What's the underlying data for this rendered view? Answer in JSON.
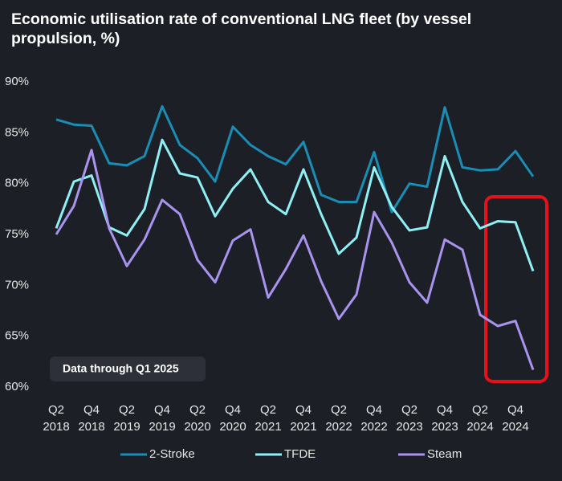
{
  "chart_data": {
    "type": "line",
    "title": "Economic utilisation rate of conventional LNG fleet (by vessel propulsion, %)",
    "annotation": "Data through Q1 2025",
    "categories": [
      "Q2 2018",
      null,
      "Q4 2018",
      null,
      "Q2 2019",
      null,
      "Q4 2019",
      null,
      "Q2 2020",
      null,
      "Q4 2020",
      null,
      "Q2 2021",
      null,
      "Q4 2021",
      null,
      "Q2 2022",
      null,
      "Q4 2022",
      null,
      "Q2 2023",
      null,
      "Q4 2023",
      null,
      "Q2 2024",
      null,
      "Q4 2024",
      null
    ],
    "series": [
      {
        "name": "2-Stroke",
        "color": "#1b8db5",
        "values": [
          86.3,
          85.8,
          85.7,
          82.0,
          81.8,
          82.7,
          87.6,
          83.8,
          82.5,
          80.2,
          85.6,
          83.8,
          82.7,
          81.9,
          84.1,
          78.9,
          78.2,
          78.2,
          83.1,
          77.2,
          80.0,
          79.7,
          87.5,
          81.6,
          81.3,
          81.4,
          83.2,
          80.7
        ]
      },
      {
        "name": "TFDE",
        "color": "#8ef0f5",
        "values": [
          75.6,
          80.2,
          80.8,
          75.7,
          74.9,
          77.5,
          84.3,
          81.0,
          80.6,
          76.8,
          79.5,
          81.4,
          78.2,
          77.0,
          81.4,
          77.0,
          73.1,
          74.7,
          81.6,
          77.7,
          75.4,
          75.7,
          82.7,
          78.2,
          75.6,
          76.3,
          76.2,
          71.4
        ]
      },
      {
        "name": "Steam",
        "color": "#a993ef",
        "values": [
          75.0,
          77.8,
          83.3,
          75.6,
          71.9,
          74.5,
          78.4,
          77.0,
          72.5,
          70.3,
          74.4,
          75.5,
          68.8,
          71.6,
          74.9,
          70.4,
          66.7,
          69.1,
          77.2,
          74.2,
          70.3,
          68.3,
          74.5,
          73.5,
          67.1,
          66.0,
          66.5,
          61.7
        ]
      }
    ],
    "ylim": [
      60,
      90
    ],
    "yticks": [
      {
        "value": 60,
        "label": "60%"
      },
      {
        "value": 65,
        "label": "65%"
      },
      {
        "value": 70,
        "label": "70%"
      },
      {
        "value": 75,
        "label": "75%"
      },
      {
        "value": 80,
        "label": "80%"
      },
      {
        "value": 85,
        "label": "85%"
      },
      {
        "value": 90,
        "label": "90%"
      }
    ],
    "grid": false
  }
}
